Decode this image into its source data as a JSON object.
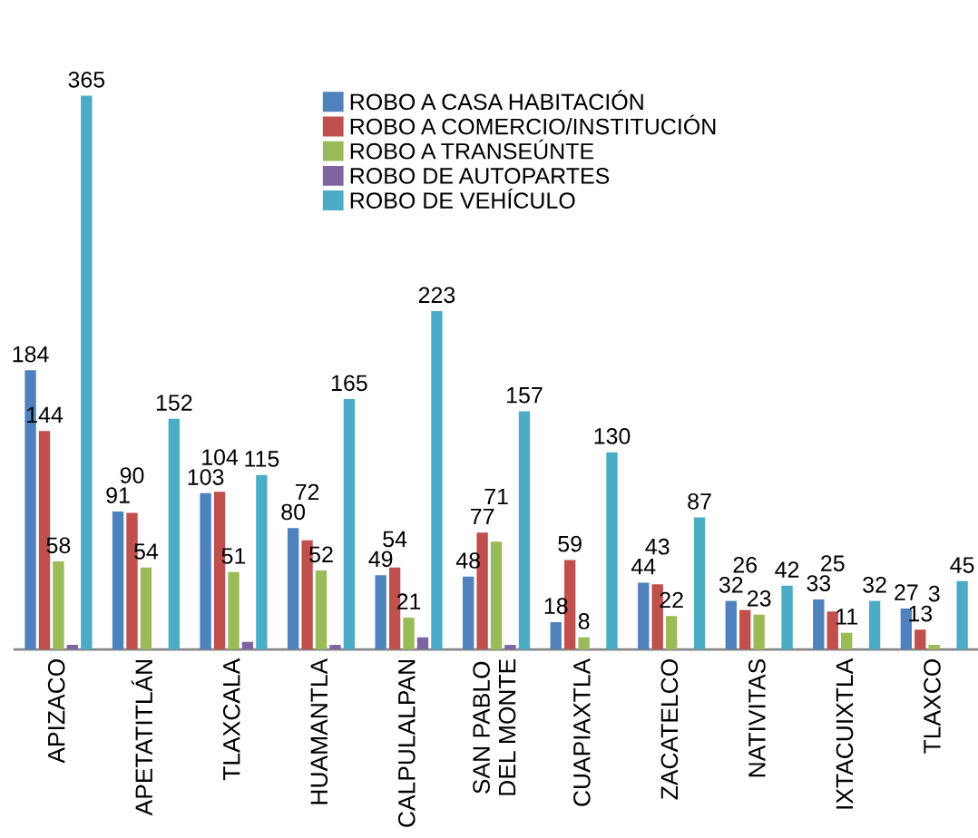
{
  "chart_data": {
    "type": "bar",
    "categories": [
      "APIZACO",
      "APETATITLÁN",
      "TLAXCALA",
      "HUAMANTLA",
      "CALPULALPAN",
      "SAN PABLO\nDEL MONTE",
      "CUAPIAXTLA",
      "ZACATELCO",
      "NATIVITAS",
      "IXTACUIXTLA",
      "TLAXCO"
    ],
    "series": [
      {
        "name": "ROBO A CASA HABITACIÓN",
        "color": "#4f81bd",
        "values": [
          184,
          91,
          103,
          80,
          49,
          48,
          18,
          44,
          32,
          33,
          27
        ],
        "value_labels": [
          "184",
          "91",
          "103",
          "80",
          "49",
          "48",
          "18",
          "44",
          "32",
          "33",
          "27"
        ]
      },
      {
        "name": "ROBO A COMERCIO/INSTITUCIÓN",
        "color": "#c0504d",
        "values": [
          144,
          90,
          104,
          72,
          54,
          77,
          59,
          43,
          26,
          25,
          13
        ],
        "value_labels": [
          "144",
          "90",
          "104",
          "72",
          "54",
          "77",
          "59",
          "43",
          "26",
          "25",
          "13"
        ]
      },
      {
        "name": "ROBO A TRANSEÚNTE",
        "color": "#9bbb59",
        "values": [
          58,
          54,
          51,
          52,
          21,
          71,
          8,
          22,
          23,
          11,
          3
        ],
        "value_labels": [
          "58",
          "54",
          "51",
          "52",
          "21",
          "71",
          "8",
          "22",
          "23",
          "11",
          "3"
        ]
      },
      {
        "name": "ROBO DE AUTOPARTES",
        "color": "#8064a2",
        "values": [
          3,
          0,
          5,
          3,
          8,
          3,
          0,
          0,
          0,
          0,
          0
        ]
      },
      {
        "name": "ROBO DE VEHÍCULO",
        "color": "#4bacc6",
        "values": [
          365,
          152,
          115,
          165,
          223,
          157,
          130,
          87,
          42,
          32,
          45
        ],
        "value_labels": [
          "365",
          "152",
          "115",
          "165",
          "223",
          "157",
          "130",
          "87",
          "42",
          "32",
          "45"
        ]
      }
    ],
    "legend": "top",
    "grid": false
  }
}
